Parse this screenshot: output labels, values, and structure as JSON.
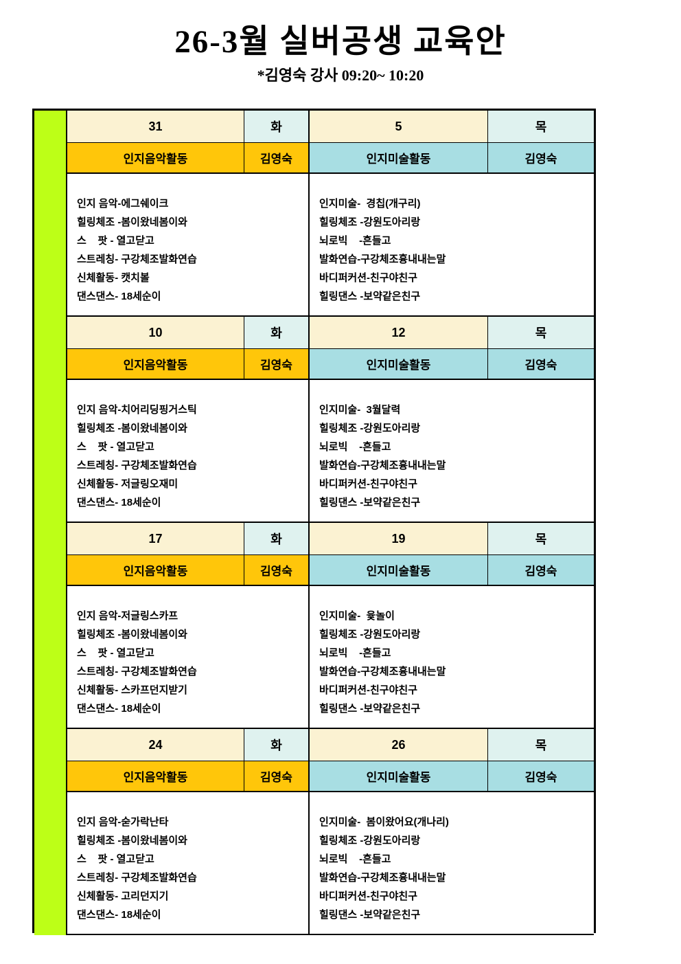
{
  "title": "26-3월 실버공생 교육안",
  "subtitle": "*김영숙 강사 09:20~ 10:20",
  "colors": {
    "accent_green": "#bdff17",
    "date_bg": "#fbf2d2",
    "day_bg": "#dff2ef",
    "music_header_bg": "#ffc60a",
    "art_header_bg": "#a8dee3",
    "border": "#000000"
  },
  "table": {
    "blocks": [
      {
        "left": {
          "date": "31",
          "day": "화",
          "activity": "인지음악활동",
          "teacher": "김영숙",
          "lines": [
            "인지 음악-에그쉐이크",
            "힐링체조 -봄이왔네봄이와",
            "스    팟 - 열고닫고",
            "스트레칭- 구강체조발화연습",
            "신체활동- 캣치볼",
            "댄스댄스- 18세순이"
          ]
        },
        "right": {
          "date": "5",
          "day": "목",
          "activity": "인지미술활동",
          "teacher": "김영숙",
          "lines": [
            "인지미술-  경칩(개구리)",
            "힐링체조 -강원도아리랑",
            "뇌로빅    -흔들고",
            "발화연습-구강체조흉내내는말",
            "바디퍼커션-친구야친구",
            "힐링댄스 -보약같은친구"
          ]
        }
      },
      {
        "left": {
          "date": "10",
          "day": "화",
          "activity": "인지음악활동",
          "teacher": "김영숙",
          "lines": [
            "인지 음악-치어리딩핑거스틱",
            "힐링체조 -봄이왔네봄이와",
            "스    팟 - 열고닫고",
            "스트레칭- 구강체조발화연습",
            "신체활동- 저글링오재미",
            "댄스댄스- 18세순이"
          ]
        },
        "right": {
          "date": "12",
          "day": "목",
          "activity": "인지미술활동",
          "teacher": "김영숙",
          "lines": [
            "인지미술-  3월달력",
            "힐링체조 -강원도아리랑",
            "뇌로빅    -흔들고",
            "발화연습-구강체조흉내내는말",
            "바디퍼커션-친구야친구",
            "힐링댄스 -보약같은친구"
          ]
        }
      },
      {
        "left": {
          "date": "17",
          "day": "화",
          "activity": "인지음악활동",
          "teacher": "김영숙",
          "lines": [
            "인지 음악-저글링스카프",
            "힐링체조 -봄이왔네봄이와",
            "스    팟 - 열고닫고",
            "스트레칭- 구강체조발화연습",
            "신체활동- 스카프던지받기",
            "댄스댄스- 18세순이"
          ]
        },
        "right": {
          "date": "19",
          "day": "목",
          "activity": "인지미술활동",
          "teacher": "김영숙",
          "lines": [
            "인지미술-  윷놀이",
            "힐링체조 -강원도아리랑",
            "뇌로빅    -흔들고",
            "발화연습-구강체조흉내내는말",
            "바디퍼커션-친구야친구",
            "힐링댄스 -보약같은친구"
          ]
        }
      },
      {
        "left": {
          "date": "24",
          "day": "화",
          "activity": "인지음악활동",
          "teacher": "김영숙",
          "lines": [
            "인지 음악-숟가락난타",
            "힐링체조 -봄이왔네봄이와",
            "스    팟 - 열고닫고",
            "스트레칭- 구강체조발화연습",
            "신체활동- 고리던지기",
            "댄스댄스- 18세순이"
          ]
        },
        "right": {
          "date": "26",
          "day": "목",
          "activity": "인지미술활동",
          "teacher": "김영숙",
          "lines": [
            "인지미술-  봄이왔어요(개나리)",
            "힐링체조 -강원도아리랑",
            "뇌로빅    -흔들고",
            "발화연습-구강체조흉내내는말",
            "바디퍼커션-친구야친구",
            "힐링댄스 -보약같은친구"
          ]
        }
      }
    ]
  }
}
